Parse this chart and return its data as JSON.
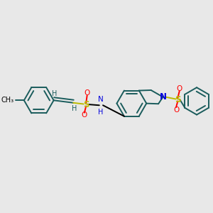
{
  "bg_color": "#e8e8e8",
  "bond_color": "#1a5c5c",
  "black": "#000000",
  "red": "#ff0000",
  "blue": "#0000dd",
  "yellow_s": "#bbbb00",
  "lw": 1.4,
  "figsize": [
    3.0,
    3.0
  ],
  "dpi": 100,
  "xlim": [
    0,
    10
  ],
  "ylim": [
    0,
    10
  ]
}
